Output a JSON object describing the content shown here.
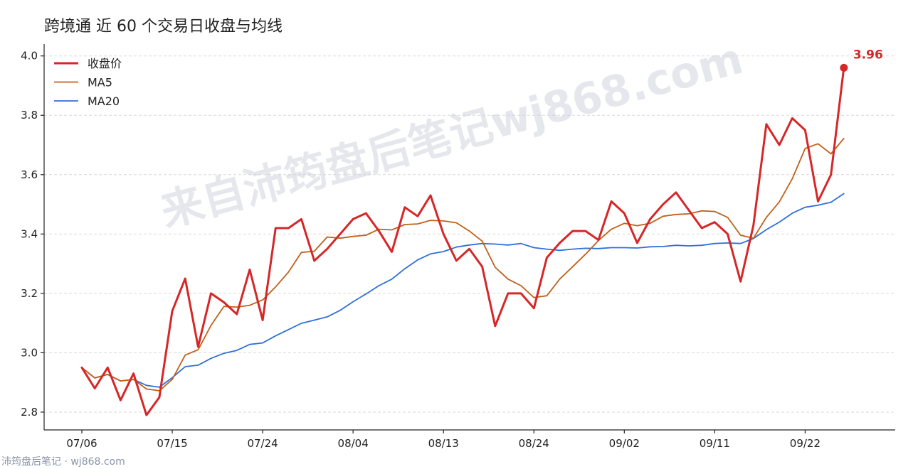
{
  "chart_data": {
    "type": "line",
    "title": "跨境通 近 60 个交易日收盘与均线",
    "xlabel": "",
    "ylabel": "",
    "ylim": [
      2.74,
      4.04
    ],
    "yticks": [
      2.8,
      3.0,
      3.2,
      3.4,
      3.6,
      3.8,
      4.0
    ],
    "x_tick_labels": [
      {
        "index": 0,
        "label": "07/06"
      },
      {
        "index": 7,
        "label": "07/15"
      },
      {
        "index": 14,
        "label": "07/24"
      },
      {
        "index": 21,
        "label": "08/04"
      },
      {
        "index": 28,
        "label": "08/13"
      },
      {
        "index": 35,
        "label": "08/24"
      },
      {
        "index": 42,
        "label": "09/02"
      },
      {
        "index": 49,
        "label": "09/11"
      },
      {
        "index": 56,
        "label": "09/22"
      }
    ],
    "grid": "horizontal dashed",
    "legend_position": "top-left",
    "series": [
      {
        "name": "收盘价",
        "color": "#d62728",
        "values": [
          2.95,
          2.88,
          2.95,
          2.84,
          2.93,
          2.79,
          2.85,
          3.14,
          3.25,
          3.02,
          3.2,
          3.17,
          3.13,
          3.28,
          3.11,
          3.42,
          3.42,
          3.45,
          3.31,
          3.35,
          3.4,
          3.45,
          3.47,
          3.41,
          3.34,
          3.49,
          3.46,
          3.53,
          3.4,
          3.31,
          3.35,
          3.29,
          3.09,
          3.2,
          3.2,
          3.15,
          3.32,
          3.37,
          3.41,
          3.41,
          3.38,
          3.51,
          3.47,
          3.37,
          3.45,
          3.5,
          3.54,
          3.48,
          3.42,
          3.44,
          3.4,
          3.24,
          3.43,
          3.77,
          3.7,
          3.79,
          3.75,
          3.51,
          3.6,
          3.96
        ]
      },
      {
        "name": "MA5",
        "color": "#c0601a",
        "values": [
          2.95,
          2.915,
          2.927,
          2.905,
          2.91,
          2.878,
          2.872,
          2.91,
          2.992,
          3.01,
          3.092,
          3.156,
          3.154,
          3.16,
          3.178,
          3.222,
          3.272,
          3.338,
          3.342,
          3.39,
          3.386,
          3.392,
          3.396,
          3.416,
          3.414,
          3.432,
          3.434,
          3.446,
          3.444,
          3.438,
          3.41,
          3.376,
          3.288,
          3.248,
          3.226,
          3.186,
          3.192,
          3.248,
          3.29,
          3.332,
          3.378,
          3.416,
          3.436,
          3.428,
          3.436,
          3.46,
          3.466,
          3.468,
          3.478,
          3.476,
          3.456,
          3.396,
          3.386,
          3.456,
          3.508,
          3.586,
          3.688,
          3.704,
          3.67,
          3.722
        ]
      },
      {
        "name": "MA20",
        "color": "#2f6fdb",
        "values": [
          2.95,
          2.915,
          2.927,
          2.905,
          2.91,
          2.89,
          2.884,
          2.916,
          2.953,
          2.958,
          2.981,
          2.998,
          3.008,
          3.028,
          3.033,
          3.057,
          3.078,
          3.099,
          3.11,
          3.121,
          3.143,
          3.172,
          3.198,
          3.226,
          3.248,
          3.283,
          3.313,
          3.333,
          3.341,
          3.356,
          3.363,
          3.368,
          3.366,
          3.363,
          3.368,
          3.354,
          3.349,
          3.345,
          3.349,
          3.352,
          3.351,
          3.354,
          3.354,
          3.353,
          3.357,
          3.358,
          3.362,
          3.36,
          3.362,
          3.368,
          3.37,
          3.368,
          3.385,
          3.415,
          3.44,
          3.47,
          3.49,
          3.497,
          3.507,
          3.536
        ]
      }
    ],
    "last_value_label": "3.96"
  },
  "watermark": "来自沛筠盘后笔记wj868.com",
  "footer": "沛筠盘后笔记 · wj868.com"
}
